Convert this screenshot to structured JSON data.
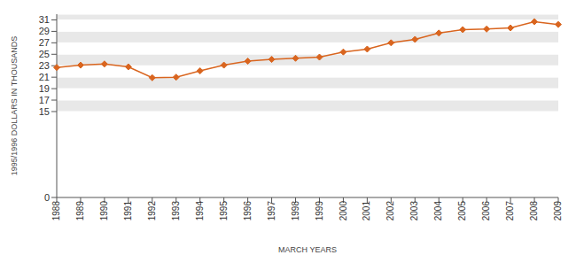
{
  "chart_data": {
    "type": "line",
    "x_label": "MARCH YEARS",
    "y_label": "1995/1996 DOLLARS IN THOUSANDS",
    "categories": [
      "1988",
      "1989",
      "1990",
      "1991",
      "1992",
      "1993",
      "1994",
      "1995",
      "1996",
      "1997",
      "1998",
      "1999",
      "2000",
      "2001",
      "2002",
      "2003",
      "2004",
      "2005",
      "2006",
      "2007",
      "2008",
      "2009"
    ],
    "values": [
      22.7,
      23.1,
      23.3,
      22.8,
      20.9,
      21.0,
      22.1,
      23.1,
      23.8,
      24.1,
      24.3,
      24.5,
      25.4,
      25.9,
      27.0,
      27.6,
      28.7,
      29.3,
      29.4,
      29.6,
      30.7,
      30.2
    ],
    "color": "#d9651f",
    "marker": "diamond",
    "ylim": [
      0,
      32
    ],
    "yticks": [
      0,
      15,
      17,
      19,
      21,
      23,
      25,
      27,
      29,
      31
    ],
    "grid": true
  }
}
